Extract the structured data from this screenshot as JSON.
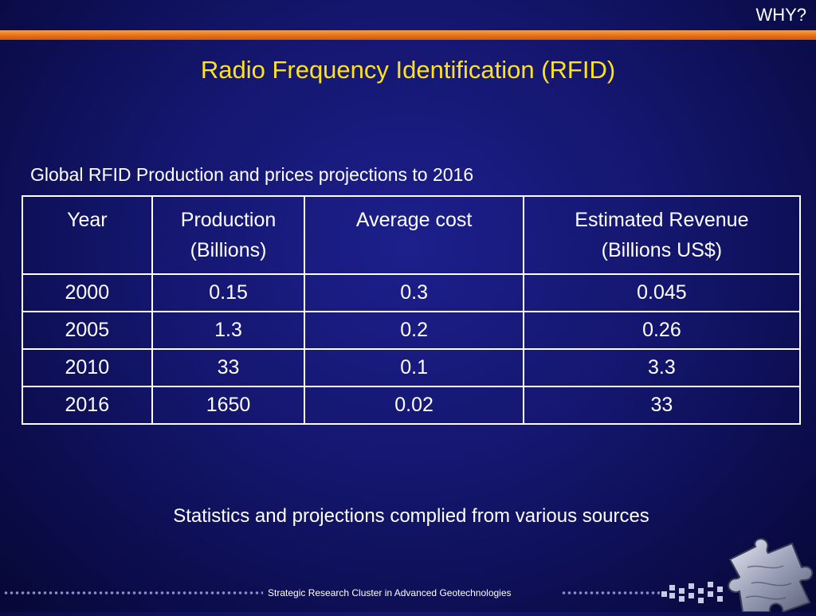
{
  "header": {
    "section_label": "WHY?"
  },
  "slide": {
    "title": "Radio Frequency Identification (RFID)",
    "table_caption": "Global RFID Production and prices projections to 2016",
    "note": "Statistics and projections complied from various sources"
  },
  "table": {
    "headers": [
      [
        "Year"
      ],
      [
        "Production",
        "(Billions)"
      ],
      [
        "Average cost"
      ],
      [
        "Estimated Revenue",
        "(Billions US$)"
      ]
    ],
    "rows": [
      [
        "2000",
        "0.15",
        "0.3",
        "0.045"
      ],
      [
        "2005",
        "1.3",
        "0.2",
        "0.26"
      ],
      [
        "2010",
        "33",
        "0.1",
        "3.3"
      ],
      [
        "2016",
        "1650",
        "0.02",
        "33"
      ]
    ]
  },
  "footer": {
    "text": "Strategic Research Cluster in Advanced Geotechnologies"
  },
  "colors": {
    "background": "#14166e",
    "accent_bar": "#e8741c",
    "title": "#ffe21a"
  },
  "icons": {
    "logo": "puzzle-piece-icon"
  }
}
